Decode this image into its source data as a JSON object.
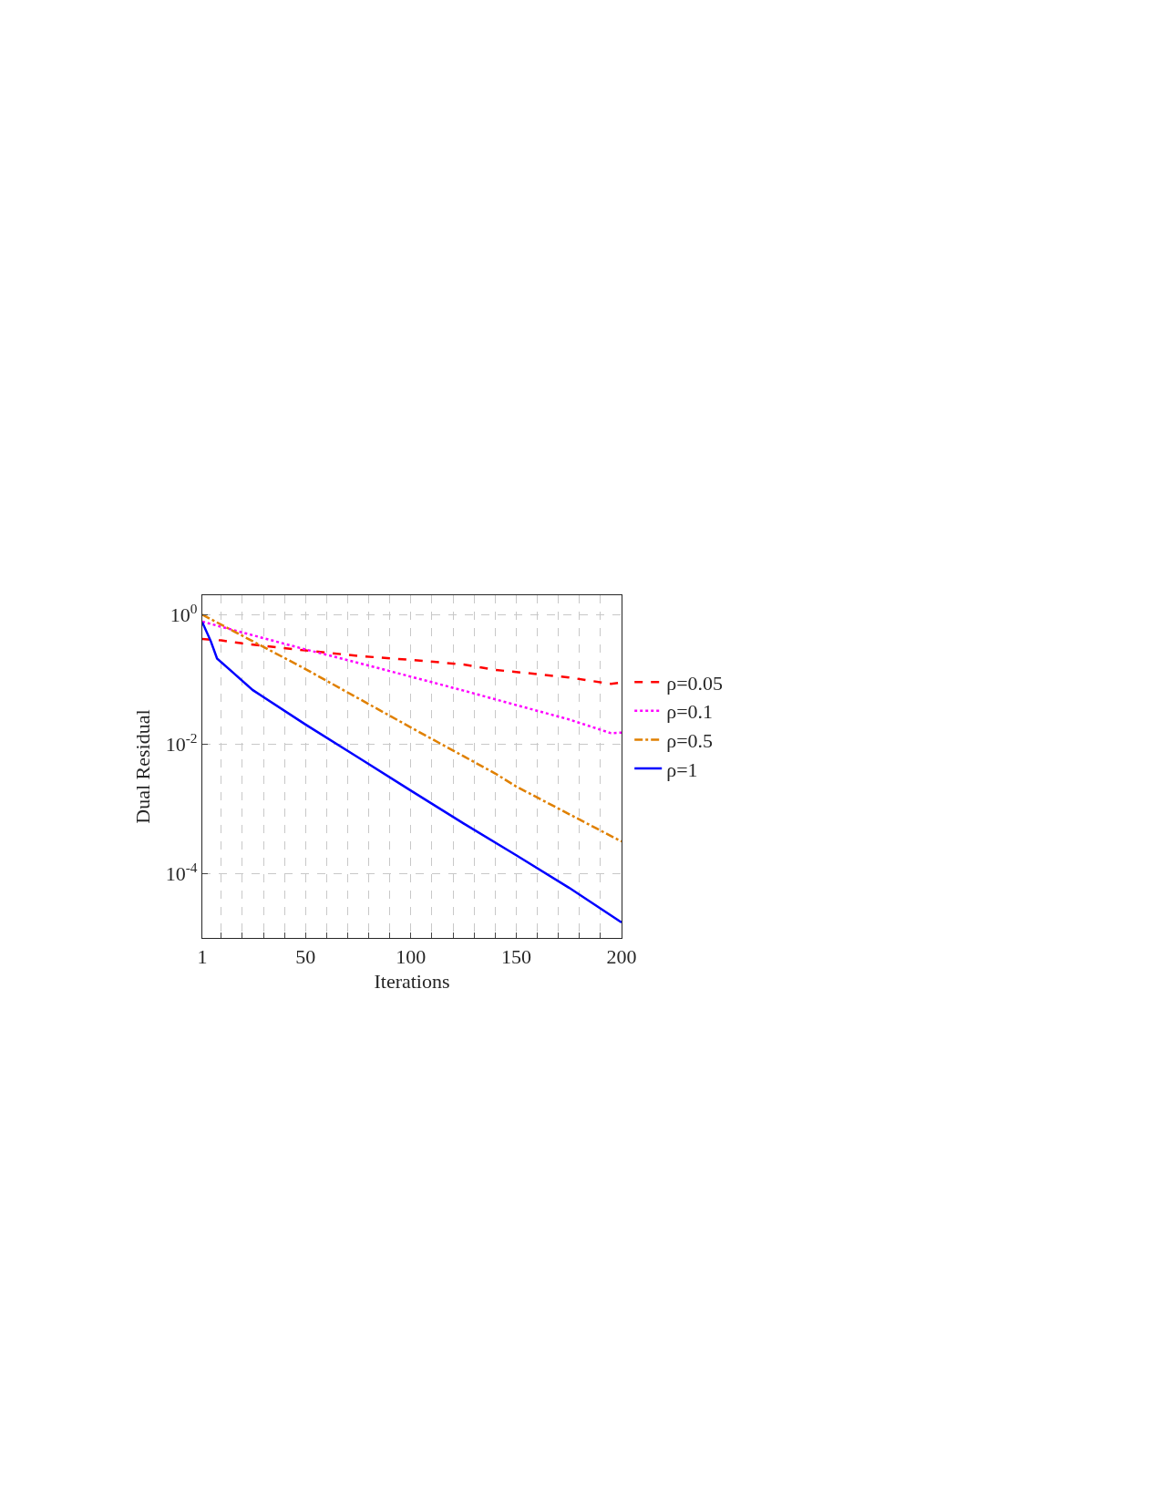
{
  "chart_data": {
    "type": "line",
    "xlabel": "Iterations",
    "ylabel": "Dual Residual",
    "series": [
      {
        "name": "ρ=0.05",
        "color": "#ff0000",
        "line_style": "dashed",
        "x": [
          1,
          10,
          20,
          30,
          50,
          75,
          100,
          125,
          140,
          150,
          175,
          195,
          200
        ],
        "values": [
          0.42,
          0.4,
          0.36,
          0.33,
          0.28,
          0.23,
          0.2,
          0.17,
          0.14,
          0.13,
          0.107,
          0.085,
          0.089
        ]
      },
      {
        "name": "ρ=0.1",
        "color": "#ff00ff",
        "line_style": "dotted",
        "x": [
          1,
          25,
          50,
          75,
          100,
          125,
          150,
          175,
          195,
          200
        ],
        "values": [
          0.78,
          0.48,
          0.29,
          0.18,
          0.11,
          0.067,
          0.04,
          0.024,
          0.0147,
          0.015
        ]
      },
      {
        "name": "ρ=0.5",
        "color": "#e08000",
        "line_style": "dashdot",
        "x": [
          1,
          50,
          100,
          140,
          150,
          200
        ],
        "values": [
          1.0,
          0.144,
          0.018,
          0.0035,
          0.0022,
          0.00031
        ]
      },
      {
        "name": "ρ=1",
        "color": "#0000ff",
        "line_style": "solid",
        "x": [
          1,
          5,
          8,
          25,
          50,
          75,
          100,
          125,
          150,
          175,
          200
        ],
        "values": [
          0.76,
          0.39,
          0.21,
          0.068,
          0.02,
          0.0062,
          0.0019,
          0.00059,
          0.00019,
          6e-05,
          1.74e-05
        ]
      }
    ],
    "log": "y",
    "xlim": [
      1,
      200
    ],
    "ylim": [
      1e-05,
      2
    ],
    "xticks": [
      1,
      {
        "value": 10,
        "label": null
      },
      {
        "value": 20,
        "label": null
      },
      {
        "value": 30,
        "label": null
      },
      {
        "value": 40,
        "label": null
      },
      50,
      {
        "value": 60,
        "label": null
      },
      {
        "value": 70,
        "label": null
      },
      {
        "value": 80,
        "label": null
      },
      {
        "value": 90,
        "label": null
      },
      100,
      {
        "value": 110,
        "label": null
      },
      {
        "value": 120,
        "label": null
      },
      {
        "value": 130,
        "label": null
      },
      {
        "value": 140,
        "label": null
      },
      150,
      {
        "value": 160,
        "label": null
      },
      {
        "value": 170,
        "label": null
      },
      {
        "value": 180,
        "label": null
      },
      {
        "value": 190,
        "label": null
      },
      200
    ],
    "yticks": [
      {
        "value": 0.0001,
        "label": "10$^{-4}$"
      },
      {
        "value": 0.01,
        "label": "10$^{-2}$"
      },
      {
        "value": 1,
        "label": "10$^{0}$"
      }
    ],
    "grid": true,
    "legend": "right"
  }
}
